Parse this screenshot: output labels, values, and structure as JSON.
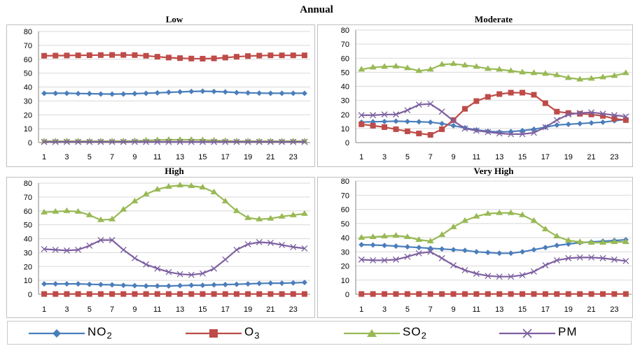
{
  "title": "Annual",
  "chart_data": [
    {
      "type": "line",
      "title": "Low",
      "x": [
        1,
        2,
        3,
        4,
        5,
        6,
        7,
        8,
        9,
        10,
        11,
        12,
        13,
        14,
        15,
        16,
        17,
        18,
        19,
        20,
        21,
        22,
        23,
        24
      ],
      "xticks": [
        1,
        3,
        5,
        7,
        9,
        11,
        13,
        15,
        17,
        19,
        21,
        23
      ],
      "ylim": [
        0,
        80
      ],
      "yticks": [
        0,
        10,
        20,
        30,
        40,
        50,
        60,
        70,
        80
      ],
      "grid": true,
      "series": [
        {
          "name": "NO2",
          "values": [
            35.5,
            35.5,
            35.5,
            35.3,
            35.2,
            35.0,
            34.9,
            35.0,
            35.2,
            35.5,
            35.8,
            36.2,
            36.5,
            36.8,
            37.0,
            36.8,
            36.5,
            36.0,
            35.8,
            35.6,
            35.5,
            35.5,
            35.5,
            35.5
          ]
        },
        {
          "name": "O3",
          "values": [
            62.5,
            62.6,
            62.7,
            62.8,
            62.9,
            63.0,
            63.1,
            63.1,
            63.0,
            62.5,
            61.8,
            61.2,
            60.8,
            60.5,
            60.4,
            60.6,
            61.2,
            61.8,
            62.3,
            62.6,
            62.8,
            62.8,
            62.8,
            62.8
          ]
        },
        {
          "name": "SO2",
          "values": [
            1.0,
            1.0,
            1.0,
            1.0,
            1.0,
            1.0,
            1.0,
            1.0,
            1.2,
            1.5,
            1.8,
            2.0,
            2.0,
            2.0,
            1.8,
            1.5,
            1.2,
            1.0,
            1.0,
            1.0,
            1.0,
            1.0,
            1.0,
            1.0
          ]
        },
        {
          "name": "PM",
          "values": [
            0.5,
            0.5,
            0.5,
            0.5,
            0.5,
            0.5,
            0.5,
            0.5,
            0.5,
            0.5,
            0.5,
            0.5,
            0.5,
            0.5,
            0.5,
            0.5,
            0.5,
            0.5,
            0.5,
            0.5,
            0.5,
            0.5,
            0.5,
            0.5
          ]
        }
      ]
    },
    {
      "type": "line",
      "title": "Moderate",
      "x": [
        1,
        2,
        3,
        4,
        5,
        6,
        7,
        8,
        9,
        10,
        11,
        12,
        13,
        14,
        15,
        16,
        17,
        18,
        19,
        20,
        21,
        22,
        23,
        24
      ],
      "xticks": [
        1,
        3,
        5,
        7,
        9,
        11,
        13,
        15,
        17,
        19,
        21,
        23
      ],
      "ylim": [
        0,
        80
      ],
      "yticks": [
        0,
        10,
        20,
        30,
        40,
        50,
        60,
        70,
        80
      ],
      "grid": true,
      "series": [
        {
          "name": "NO2",
          "values": [
            14.5,
            14.8,
            15.0,
            15.2,
            15.0,
            14.8,
            14.5,
            13.5,
            12.0,
            10.5,
            9.0,
            8.0,
            7.5,
            7.8,
            8.5,
            9.5,
            11.0,
            12.5,
            13.0,
            13.5,
            14.0,
            14.5,
            15.5,
            16.5
          ]
        },
        {
          "name": "O3",
          "values": [
            13.0,
            12.0,
            11.0,
            9.5,
            8.0,
            6.5,
            5.5,
            9.5,
            16.0,
            24.0,
            29.5,
            32.5,
            34.5,
            35.5,
            35.5,
            34.0,
            28.0,
            22.0,
            21.0,
            20.5,
            20.0,
            19.0,
            17.0,
            16.0
          ]
        },
        {
          "name": "SO2",
          "values": [
            52.0,
            53.5,
            54.0,
            54.2,
            53.0,
            51.0,
            52.0,
            55.5,
            56.0,
            55.0,
            54.0,
            52.5,
            52.0,
            51.0,
            50.0,
            49.5,
            49.0,
            48.0,
            46.0,
            45.0,
            45.5,
            46.5,
            47.5,
            49.5
          ]
        },
        {
          "name": "PM",
          "values": [
            19.5,
            19.5,
            20.0,
            20.0,
            23.0,
            27.0,
            27.5,
            22.0,
            15.5,
            10.0,
            8.5,
            7.5,
            6.5,
            6.0,
            6.0,
            7.0,
            11.0,
            16.0,
            20.0,
            21.0,
            21.5,
            20.5,
            19.5,
            18.5
          ]
        }
      ]
    },
    {
      "type": "line",
      "title": "High",
      "x": [
        1,
        2,
        3,
        4,
        5,
        6,
        7,
        8,
        9,
        10,
        11,
        12,
        13,
        14,
        15,
        16,
        17,
        18,
        19,
        20,
        21,
        22,
        23,
        24
      ],
      "xticks": [
        1,
        3,
        5,
        7,
        9,
        11,
        13,
        15,
        17,
        19,
        21,
        23
      ],
      "ylim": [
        0,
        80
      ],
      "yticks": [
        0,
        10,
        20,
        30,
        40,
        50,
        60,
        70,
        80
      ],
      "grid": true,
      "series": [
        {
          "name": "NO2",
          "values": [
            7.5,
            7.5,
            7.5,
            7.5,
            7.2,
            7.0,
            6.8,
            6.5,
            6.2,
            6.0,
            6.0,
            6.0,
            6.2,
            6.5,
            6.5,
            6.8,
            7.0,
            7.2,
            7.5,
            7.8,
            8.0,
            8.0,
            8.2,
            8.5
          ]
        },
        {
          "name": "O3",
          "values": [
            0.2,
            0.2,
            0.2,
            0.2,
            0.2,
            0.2,
            0.2,
            0.2,
            0.2,
            0.2,
            0.2,
            0.2,
            0.2,
            0.2,
            0.2,
            0.2,
            0.2,
            0.2,
            0.2,
            0.2,
            0.2,
            0.2,
            0.2,
            0.2
          ]
        },
        {
          "name": "SO2",
          "values": [
            59.0,
            59.5,
            60.0,
            59.5,
            57.0,
            53.5,
            54.0,
            61.0,
            67.0,
            72.0,
            75.5,
            77.5,
            78.5,
            78.0,
            77.0,
            73.5,
            67.0,
            60.0,
            55.0,
            54.0,
            54.5,
            56.0,
            57.0,
            58.0
          ]
        },
        {
          "name": "PM",
          "values": [
            32.5,
            32.0,
            31.5,
            32.0,
            35.0,
            39.0,
            39.0,
            32.0,
            26.0,
            21.5,
            18.5,
            16.0,
            14.5,
            14.0,
            15.0,
            18.5,
            25.0,
            32.0,
            36.0,
            37.5,
            37.0,
            35.5,
            34.0,
            33.0
          ]
        }
      ]
    },
    {
      "type": "line",
      "title": "Very High",
      "x": [
        1,
        2,
        3,
        4,
        5,
        6,
        7,
        8,
        9,
        10,
        11,
        12,
        13,
        14,
        15,
        16,
        17,
        18,
        19,
        20,
        21,
        22,
        23,
        24
      ],
      "xticks": [
        1,
        3,
        5,
        7,
        9,
        11,
        13,
        15,
        17,
        19,
        21,
        23
      ],
      "ylim": [
        0,
        80
      ],
      "yticks": [
        0,
        10,
        20,
        30,
        40,
        50,
        60,
        70,
        80
      ],
      "grid": true,
      "series": [
        {
          "name": "NO2",
          "values": [
            35.0,
            34.8,
            34.5,
            34.0,
            33.5,
            33.0,
            32.5,
            32.0,
            31.5,
            31.0,
            30.0,
            29.5,
            29.0,
            29.0,
            30.0,
            31.5,
            33.0,
            34.5,
            35.5,
            36.5,
            37.0,
            37.5,
            38.0,
            38.5
          ]
        },
        {
          "name": "O3",
          "values": [
            0.2,
            0.2,
            0.2,
            0.2,
            0.2,
            0.2,
            0.2,
            0.2,
            0.2,
            0.2,
            0.2,
            0.2,
            0.2,
            0.2,
            0.2,
            0.2,
            0.2,
            0.2,
            0.2,
            0.2,
            0.2,
            0.2,
            0.2,
            0.2
          ]
        },
        {
          "name": "SO2",
          "values": [
            40.0,
            40.5,
            41.0,
            41.5,
            40.5,
            38.5,
            37.5,
            42.0,
            47.5,
            52.0,
            55.0,
            57.0,
            57.5,
            57.5,
            56.0,
            52.0,
            46.0,
            41.0,
            38.0,
            37.0,
            36.5,
            36.5,
            37.0,
            37.0
          ]
        },
        {
          "name": "PM",
          "values": [
            24.5,
            24.0,
            24.0,
            24.5,
            26.5,
            29.0,
            30.0,
            25.5,
            20.5,
            17.0,
            14.5,
            13.0,
            12.5,
            12.5,
            13.5,
            16.0,
            20.5,
            24.0,
            25.5,
            26.0,
            26.0,
            25.5,
            24.5,
            23.5
          ]
        }
      ]
    }
  ],
  "legend": [
    {
      "name": "NO",
      "sub": "2",
      "color": "#4a7ebb",
      "marker": "diamond"
    },
    {
      "name": "O",
      "sub": "3",
      "color": "#be4b48",
      "marker": "square"
    },
    {
      "name": "SO",
      "sub": "2",
      "color": "#98b954",
      "marker": "triangle"
    },
    {
      "name": "PM",
      "sub": "",
      "color": "#7d60a0",
      "marker": "x"
    }
  ]
}
